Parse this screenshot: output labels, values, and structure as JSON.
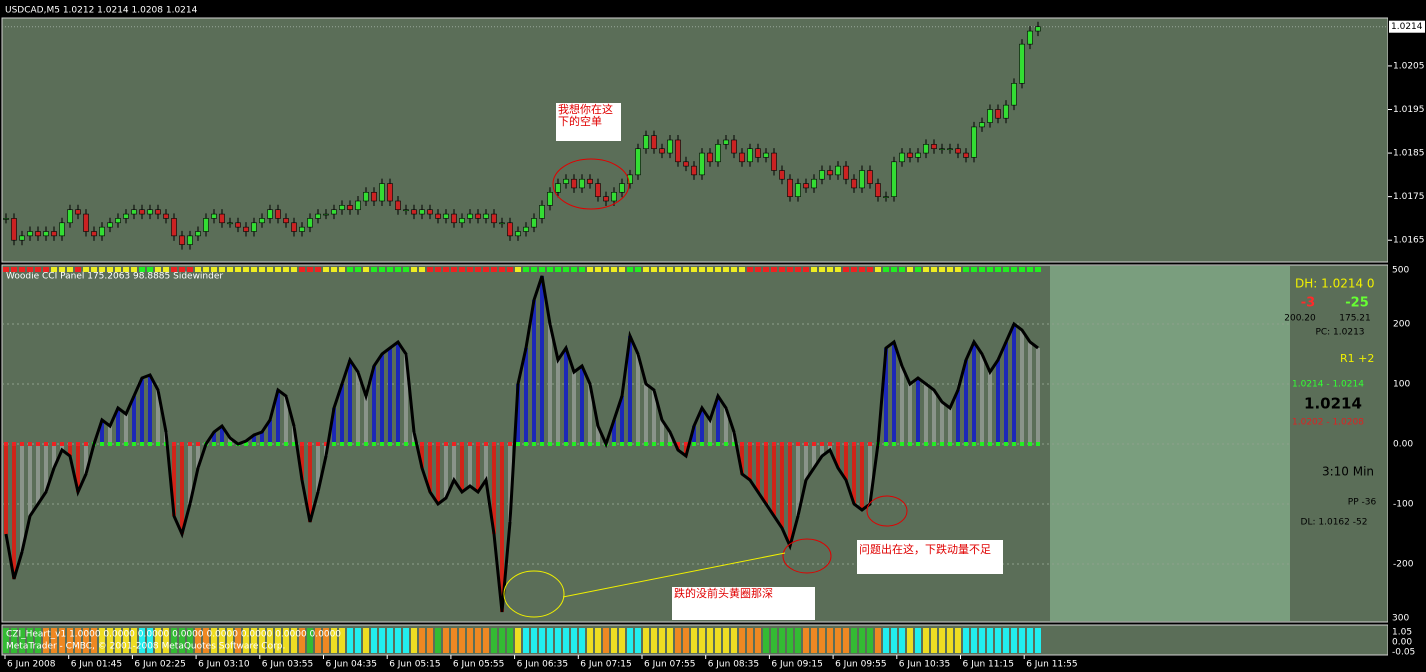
{
  "header": "USDCAD,M5  1.0212 1.0214 1.0208 1.0214",
  "price_chart": {
    "type": "candlestick",
    "closes": [
      1.017,
      1.0165,
      1.0166,
      1.0167,
      1.0166,
      1.0167,
      1.0166,
      1.0169,
      1.0172,
      1.0171,
      1.0167,
      1.0166,
      1.0168,
      1.0169,
      1.017,
      1.0171,
      1.0172,
      1.0171,
      1.0172,
      1.0171,
      1.017,
      1.0166,
      1.0164,
      1.0166,
      1.0167,
      1.017,
      1.0171,
      1.0169,
      1.0169,
      1.0168,
      1.0167,
      1.0169,
      1.017,
      1.0172,
      1.017,
      1.0169,
      1.0167,
      1.0168,
      1.017,
      1.0171,
      1.0171,
      1.0172,
      1.0173,
      1.0172,
      1.0174,
      1.0176,
      1.0174,
      1.0178,
      1.0174,
      1.0172,
      1.0172,
      1.0171,
      1.0172,
      1.0171,
      1.017,
      1.0171,
      1.0169,
      1.017,
      1.0171,
      1.017,
      1.0171,
      1.0169,
      1.0169,
      1.0166,
      1.0167,
      1.0168,
      1.017,
      1.0173,
      1.0176,
      1.0178,
      1.0179,
      1.0177,
      1.0179,
      1.0178,
      1.0175,
      1.0174,
      1.0176,
      1.0178,
      1.018,
      1.0186,
      1.0189,
      1.0186,
      1.0185,
      1.0188,
      1.0183,
      1.0182,
      1.018,
      1.0185,
      1.0183,
      1.0187,
      1.0188,
      1.0185,
      1.0183,
      1.0186,
      1.0184,
      1.0185,
      1.0181,
      1.0179,
      1.0175,
      1.0178,
      1.0177,
      1.0179,
      1.0181,
      1.018,
      1.0182,
      1.0179,
      1.0177,
      1.0181,
      1.0178,
      1.0175,
      1.0175,
      1.0183,
      1.0185,
      1.0184,
      1.0185,
      1.0187,
      1.0186,
      1.0186,
      1.0186,
      1.0185,
      1.0184,
      1.0191,
      1.0192,
      1.0195,
      1.0193,
      1.0196,
      1.0201,
      1.021,
      1.0213,
      1.0214
    ],
    "bull_color": "#33dd33",
    "bear_color": "#cc2222",
    "ylim": [
      1.016,
      1.0216
    ],
    "yticks": [
      1.0205,
      1.0195,
      1.0185,
      1.0175,
      1.0165
    ],
    "current_price": 1.0214
  },
  "cci_panel": {
    "type": "histogram",
    "title": "Woodie CCI Panel 175.2063 98.8885 Sidewinder",
    "values": [
      -150,
      -225,
      -180,
      -120,
      -100,
      -80,
      -40,
      -10,
      -20,
      -80,
      -50,
      0,
      40,
      30,
      60,
      50,
      80,
      110,
      115,
      90,
      20,
      -120,
      -150,
      -100,
      -40,
      0,
      20,
      30,
      10,
      0,
      5,
      15,
      20,
      40,
      90,
      80,
      30,
      -60,
      -130,
      -80,
      -20,
      60,
      100,
      140,
      120,
      80,
      130,
      150,
      160,
      170,
      150,
      20,
      -40,
      -80,
      -100,
      -90,
      -60,
      -80,
      -70,
      -80,
      -60,
      -150,
      -280,
      -130,
      100,
      160,
      240,
      280,
      200,
      140,
      160,
      120,
      130,
      100,
      30,
      0,
      40,
      80,
      180,
      150,
      100,
      90,
      40,
      20,
      -10,
      -20,
      30,
      60,
      40,
      80,
      60,
      20,
      -50,
      -60,
      -80,
      -100,
      -120,
      -140,
      -170,
      -120,
      -60,
      -40,
      -20,
      -10,
      -40,
      -60,
      -100,
      -110,
      -100,
      0,
      160,
      170,
      130,
      100,
      110,
      100,
      90,
      70,
      60,
      90,
      140,
      170,
      150,
      120,
      140,
      170,
      200,
      190,
      170,
      160
    ],
    "ylim": [
      -300,
      300
    ],
    "yticks": [
      200,
      100,
      {
        "value": 0,
        "label": "0.00"
      },
      -100,
      -200
    ],
    "top_label": "500",
    "bottom_label": "300",
    "colors": {
      "up": "#1c28b8",
      "down": "#d02418",
      "neutral": "#8a948a"
    }
  },
  "heart_panel": {
    "title": "CZI_Heart_v1 1.0000 0.0000 0.0000 0.0000 0.0000 0.0000 0.0000 0.0000",
    "copyright": "MetaTrader - CMBC, © 2001-2008 MetaQuotes Software Corp.",
    "scale_labels": [
      "1.05",
      "0.00",
      "-0.05"
    ]
  },
  "time_axis": [
    "6 Jun 2008",
    "6 Jun 01:45",
    "6 Jun 02:25",
    "6 Jun 03:10",
    "6 Jun 03:55",
    "6 Jun 04:35",
    "6 Jun 05:15",
    "6 Jun 05:55",
    "6 Jun 06:35",
    "6 Jun 07:15",
    "6 Jun 07:55",
    "6 Jun 08:35",
    "6 Jun 09:15",
    "6 Jun 09:55",
    "6 Jun 10:35",
    "6 Jun 11:15",
    "6 Jun 11:55"
  ],
  "info_panel": {
    "dh": "DH: 1.0214 0",
    "left_delta": "-3",
    "right_delta": "-25",
    "left_value": "200.20",
    "right_value": "175.21",
    "pc": "PC: 1.0213",
    "r1": "R1 +2",
    "range_up": "1.0214 - 1.0214",
    "price": "1.0214",
    "range_down": "1.0202 - 1.0208",
    "timer": "3:10 Min",
    "pp": "PP -36",
    "dl": "DL: 1.0162 -52"
  },
  "annotations": {
    "short_note": [
      "我想你在这",
      "下的空单"
    ],
    "momentum_note": "问题出在这，下跌动量不足",
    "depth_note": "跌的没前头黄圈那深"
  }
}
